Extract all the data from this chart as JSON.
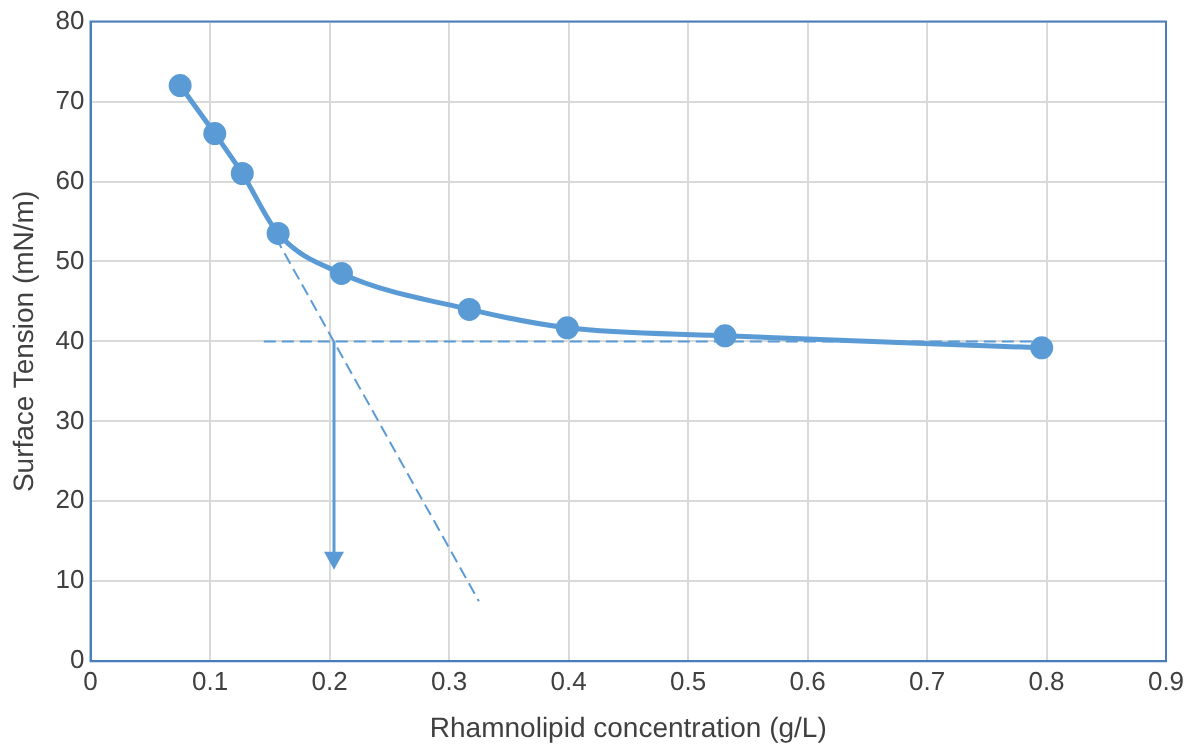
{
  "chart_data": {
    "type": "line",
    "xlabel": "Rhamnolipid concentration (g/L)",
    "ylabel": "Surface Tension (mN/m)",
    "xlim": [
      0,
      0.9
    ],
    "xticks": [
      0,
      0.1,
      0.2,
      0.3,
      0.4,
      0.5,
      0.6,
      0.7,
      0.8,
      0.9
    ],
    "ylim": [
      0,
      80
    ],
    "yticks": [
      0,
      10,
      20,
      30,
      40,
      50,
      60,
      70,
      80
    ],
    "grid": true,
    "legend": false,
    "series": [
      {
        "color": "#5b9bd5",
        "x": [
          0.075,
          0.104,
          0.127,
          0.157,
          0.21,
          0.317,
          0.399,
          0.531,
          0.796
        ],
        "values": [
          72,
          66,
          61,
          53.5,
          48.5,
          44,
          41.7,
          40.7,
          39.2
        ],
        "marker": "circle",
        "line_style": "solid"
      },
      {
        "color": "#5b9bd5",
        "x": [
          0.155,
          0.325
        ],
        "values": [
          53,
          7.5
        ],
        "marker": "none",
        "line_style": "dashed"
      },
      {
        "color": "#5b9bd5",
        "x": [
          0.145,
          0.8
        ],
        "values": [
          40,
          40
        ],
        "marker": "none",
        "line_style": "dashed"
      }
    ]
  }
}
